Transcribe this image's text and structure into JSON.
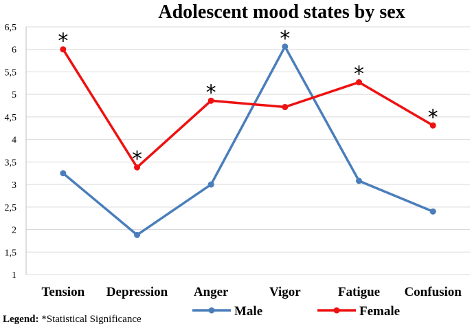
{
  "chart_data": {
    "type": "line",
    "title": "Adolescent mood states by sex",
    "categories": [
      "Tension",
      "Depression",
      "Anger",
      "Vigor",
      "Fatigue",
      "Confusion"
    ],
    "ylim": [
      1,
      6.5
    ],
    "yticks": [
      "1",
      "1,5",
      "2",
      "2,5",
      "3",
      "3,5",
      "4",
      "4,5",
      "5",
      "5,5",
      "6",
      "6,5"
    ],
    "ytick_values": [
      1,
      1.5,
      2,
      2.5,
      3,
      3.5,
      4,
      4.5,
      5,
      5.5,
      6,
      6.5
    ],
    "grid": true,
    "legend_position": "bottom",
    "series": [
      {
        "name": "Male",
        "color": "#4a7ebb",
        "values": [
          3.25,
          1.88,
          3.0,
          6.06,
          3.08,
          2.4
        ]
      },
      {
        "name": "Female",
        "color": "#ee1111",
        "values": [
          6.0,
          3.38,
          4.86,
          4.72,
          5.27,
          4.31
        ]
      }
    ],
    "significance_marker": "*",
    "significant": [
      true,
      true,
      true,
      true,
      true,
      true
    ],
    "legend_note_label": "Legend:",
    "legend_note_text": "*Statistical Significance"
  }
}
